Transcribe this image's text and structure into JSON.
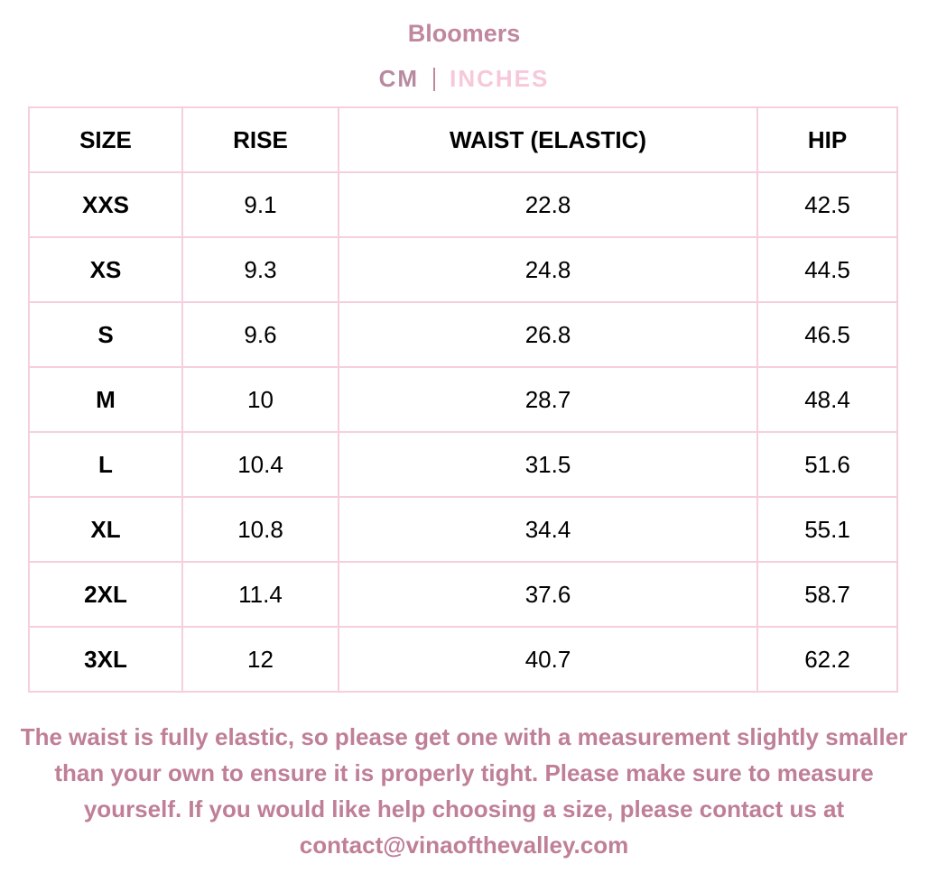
{
  "header": {
    "title": "Bloomers",
    "units": [
      {
        "label": "CM",
        "active": true
      },
      {
        "label": "INCHES",
        "active": false
      }
    ]
  },
  "table": {
    "columns": [
      "SIZE",
      "RISE",
      "WAIST (ELASTIC)",
      "HIP"
    ],
    "rows": [
      [
        "XXS",
        9.1,
        22.8,
        42.5
      ],
      [
        "XS",
        9.3,
        24.8,
        44.5
      ],
      [
        "S",
        9.6,
        26.8,
        46.5
      ],
      [
        "M",
        10,
        28.7,
        48.4
      ],
      [
        "L",
        10.4,
        31.5,
        51.6
      ],
      [
        "XL",
        10.8,
        34.4,
        55.1
      ],
      [
        "2XL",
        11.4,
        37.6,
        58.7
      ],
      [
        "3XL",
        12,
        40.7,
        62.2
      ]
    ]
  },
  "note": "The waist is fully elastic, so please get one with a measurement slightly smaller than your own to ensure it is properly tight. Please make sure to measure yourself. If you would like help choosing a size, please contact us at contact@vinaofthevalley.com"
}
